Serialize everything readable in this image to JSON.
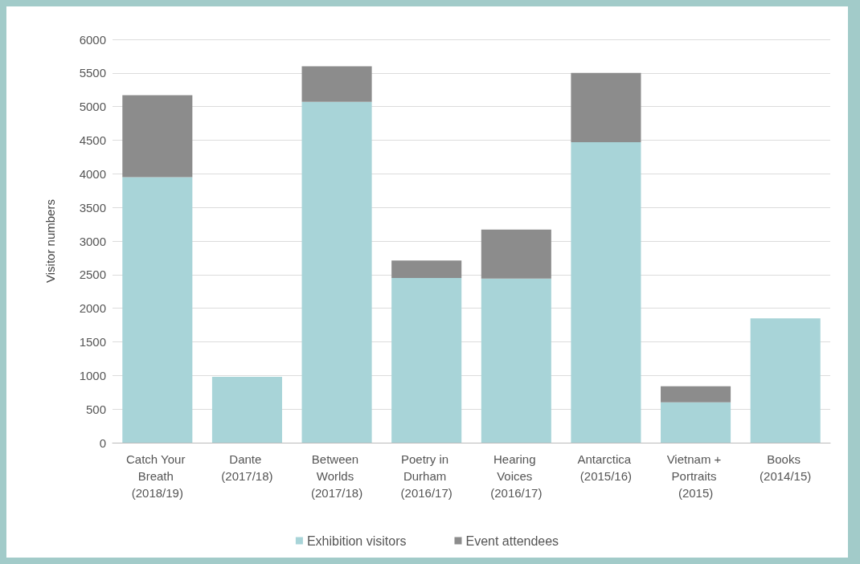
{
  "chart_data": {
    "type": "bar",
    "stacked": true,
    "ylabel": "Visitor numbers",
    "categories": [
      "Catch Your Breath (2018/19)",
      "Dante (2017/18)",
      "Between Worlds (2017/18)",
      "Poetry in Durham (2016/17)",
      "Hearing Voices (2016/17)",
      "Antarctica (2015/16)",
      "Vietnam + Portraits (2015)",
      "Books (2014/15)"
    ],
    "series": [
      {
        "name": "Exhibition visitors",
        "color": "#a8d4d8",
        "values": [
          3950,
          980,
          5070,
          2450,
          2440,
          4470,
          600,
          1850
        ]
      },
      {
        "name": "Event attendees",
        "color": "#8c8c8c",
        "values": [
          1220,
          null,
          530,
          260,
          730,
          1030,
          240,
          null
        ]
      }
    ],
    "ylim": [
      0,
      6000
    ],
    "yticks": [
      0,
      500,
      1000,
      1500,
      2000,
      2500,
      3000,
      3500,
      4000,
      4500,
      5000,
      5500,
      6000
    ],
    "grid": "y",
    "legend": "bottom"
  }
}
